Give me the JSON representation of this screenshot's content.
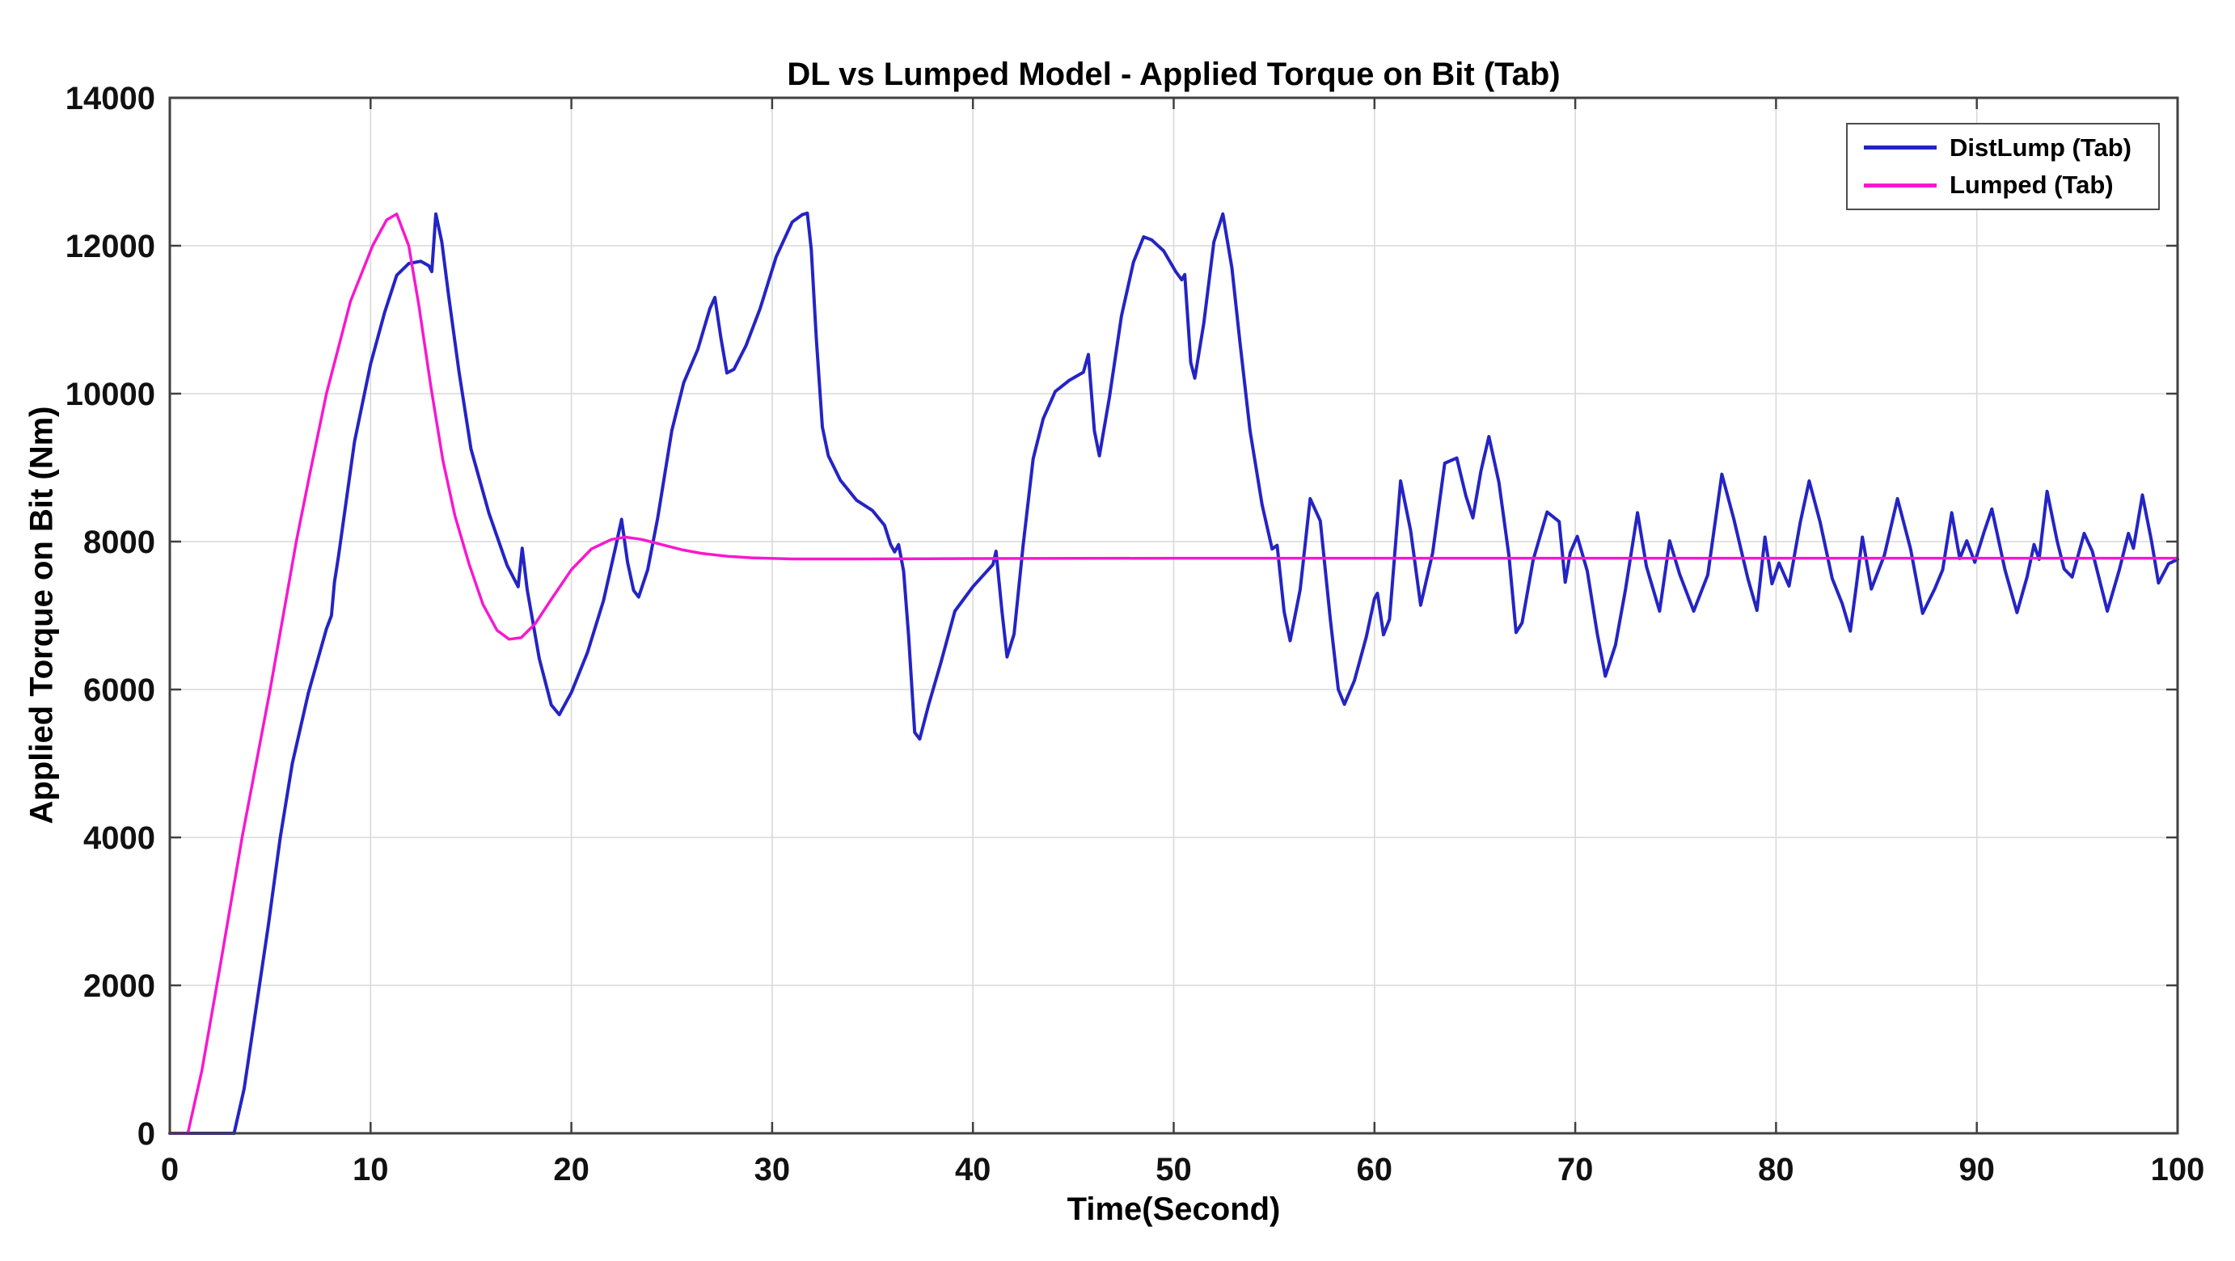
{
  "chart_data": {
    "type": "line",
    "title": "DL vs Lumped Model - Applied Torque on Bit (Tab)",
    "xlabel": "Time(Second)",
    "ylabel": "Applied Torque on Bit (Nm)",
    "xlim": [
      0,
      100
    ],
    "ylim": [
      0,
      14000
    ],
    "x_ticks": [
      0,
      10,
      20,
      30,
      40,
      50,
      60,
      70,
      80,
      90,
      100
    ],
    "y_ticks": [
      0,
      2000,
      4000,
      6000,
      8000,
      10000,
      12000,
      14000
    ],
    "grid": true,
    "legend_position": "top-right",
    "style": {
      "grid_color": "#d9d9d9",
      "axis_color": "#404040",
      "tick_label_color": "#111111",
      "background": "#ffffff"
    },
    "series": [
      {
        "name": "DistLump (Tab)",
        "color": "#2424c4",
        "line_width": 4,
        "points": [
          [
            0,
            0
          ],
          [
            1,
            0
          ],
          [
            2,
            0
          ],
          [
            3.2,
            0
          ],
          [
            3.7,
            600
          ],
          [
            4.3,
            1700
          ],
          [
            4.9,
            2800
          ],
          [
            5.5,
            4000
          ],
          [
            6.1,
            5000
          ],
          [
            6.9,
            5950
          ],
          [
            7.8,
            6820
          ],
          [
            8.05,
            7000
          ],
          [
            8.2,
            7450
          ],
          [
            8.4,
            7800
          ],
          [
            9.2,
            9350
          ],
          [
            10,
            10400
          ],
          [
            10.7,
            11100
          ],
          [
            11.3,
            11600
          ],
          [
            11.9,
            11760
          ],
          [
            12.5,
            11790
          ],
          [
            12.9,
            11730
          ],
          [
            13.05,
            11650
          ],
          [
            13.25,
            12430
          ],
          [
            13.55,
            12050
          ],
          [
            13.9,
            11300
          ],
          [
            14.4,
            10300
          ],
          [
            15,
            9250
          ],
          [
            15.9,
            8380
          ],
          [
            16.8,
            7680
          ],
          [
            17.35,
            7390
          ],
          [
            17.55,
            7910
          ],
          [
            17.8,
            7350
          ],
          [
            18.4,
            6420
          ],
          [
            19,
            5790
          ],
          [
            19.4,
            5660
          ],
          [
            20,
            5960
          ],
          [
            20.8,
            6500
          ],
          [
            21.6,
            7200
          ],
          [
            22.2,
            7920
          ],
          [
            22.5,
            8300
          ],
          [
            22.8,
            7720
          ],
          [
            23.1,
            7340
          ],
          [
            23.35,
            7250
          ],
          [
            23.8,
            7620
          ],
          [
            24.3,
            8320
          ],
          [
            25,
            9500
          ],
          [
            25.6,
            10150
          ],
          [
            26.3,
            10600
          ],
          [
            26.9,
            11150
          ],
          [
            27.15,
            11300
          ],
          [
            27.45,
            10750
          ],
          [
            27.75,
            10280
          ],
          [
            28.1,
            10330
          ],
          [
            28.7,
            10650
          ],
          [
            29.4,
            11150
          ],
          [
            30.2,
            11850
          ],
          [
            31,
            12320
          ],
          [
            31.5,
            12420
          ],
          [
            31.75,
            12440
          ],
          [
            31.95,
            11950
          ],
          [
            32.2,
            10750
          ],
          [
            32.5,
            9550
          ],
          [
            32.8,
            9160
          ],
          [
            33.4,
            8830
          ],
          [
            34.2,
            8560
          ],
          [
            35,
            8420
          ],
          [
            35.6,
            8220
          ],
          [
            35.9,
            7960
          ],
          [
            36.1,
            7860
          ],
          [
            36.3,
            7960
          ],
          [
            36.55,
            7600
          ],
          [
            36.8,
            6720
          ],
          [
            37.1,
            5420
          ],
          [
            37.35,
            5330
          ],
          [
            37.8,
            5800
          ],
          [
            38.4,
            6360
          ],
          [
            39.1,
            7060
          ],
          [
            40,
            7390
          ],
          [
            40.6,
            7570
          ],
          [
            41,
            7690
          ],
          [
            41.15,
            7870
          ],
          [
            41.45,
            7050
          ],
          [
            41.7,
            6440
          ],
          [
            42.05,
            6750
          ],
          [
            42.5,
            7950
          ],
          [
            43,
            9120
          ],
          [
            43.5,
            9660
          ],
          [
            44.1,
            10030
          ],
          [
            44.8,
            10180
          ],
          [
            45.5,
            10290
          ],
          [
            45.75,
            10530
          ],
          [
            46.05,
            9500
          ],
          [
            46.3,
            9160
          ],
          [
            46.8,
            9950
          ],
          [
            47.4,
            11050
          ],
          [
            48,
            11780
          ],
          [
            48.5,
            12120
          ],
          [
            48.9,
            12080
          ],
          [
            49.5,
            11930
          ],
          [
            50.1,
            11650
          ],
          [
            50.4,
            11540
          ],
          [
            50.55,
            11610
          ],
          [
            50.85,
            10420
          ],
          [
            51.05,
            10210
          ],
          [
            51.5,
            10950
          ],
          [
            52,
            12050
          ],
          [
            52.45,
            12430
          ],
          [
            52.9,
            11700
          ],
          [
            53.3,
            10700
          ],
          [
            53.8,
            9500
          ],
          [
            54.4,
            8500
          ],
          [
            54.9,
            7900
          ],
          [
            55.15,
            7950
          ],
          [
            55.5,
            7050
          ],
          [
            55.8,
            6660
          ],
          [
            56.3,
            7350
          ],
          [
            56.8,
            8580
          ],
          [
            57.3,
            8280
          ],
          [
            57.8,
            6950
          ],
          [
            58.2,
            6000
          ],
          [
            58.5,
            5800
          ],
          [
            59,
            6120
          ],
          [
            59.6,
            6720
          ],
          [
            60,
            7230
          ],
          [
            60.15,
            7300
          ],
          [
            60.45,
            6740
          ],
          [
            60.75,
            6950
          ],
          [
            61.3,
            8820
          ],
          [
            61.8,
            8150
          ],
          [
            62.3,
            7140
          ],
          [
            62.9,
            7850
          ],
          [
            63.5,
            9060
          ],
          [
            64.1,
            9130
          ],
          [
            64.55,
            8620
          ],
          [
            64.9,
            8320
          ],
          [
            65.3,
            8950
          ],
          [
            65.7,
            9420
          ],
          [
            66.2,
            8800
          ],
          [
            66.7,
            7800
          ],
          [
            67.05,
            6770
          ],
          [
            67.35,
            6900
          ],
          [
            67.9,
            7750
          ],
          [
            68.6,
            8400
          ],
          [
            69.2,
            8270
          ],
          [
            69.5,
            7450
          ],
          [
            69.75,
            7850
          ],
          [
            70.1,
            8070
          ],
          [
            70.6,
            7600
          ],
          [
            71.1,
            6750
          ],
          [
            71.5,
            6180
          ],
          [
            72,
            6600
          ],
          [
            72.5,
            7350
          ],
          [
            73.1,
            8390
          ],
          [
            73.55,
            7660
          ],
          [
            74.2,
            7060
          ],
          [
            74.7,
            8010
          ],
          [
            75.2,
            7560
          ],
          [
            75.9,
            7060
          ],
          [
            76.6,
            7550
          ],
          [
            77.3,
            8910
          ],
          [
            77.9,
            8300
          ],
          [
            78.6,
            7500
          ],
          [
            79.05,
            7070
          ],
          [
            79.45,
            8060
          ],
          [
            79.8,
            7430
          ],
          [
            80.15,
            7710
          ],
          [
            80.65,
            7400
          ],
          [
            81.2,
            8250
          ],
          [
            81.65,
            8820
          ],
          [
            82.2,
            8260
          ],
          [
            82.8,
            7500
          ],
          [
            83.3,
            7160
          ],
          [
            83.7,
            6790
          ],
          [
            84,
            7400
          ],
          [
            84.3,
            8060
          ],
          [
            84.75,
            7360
          ],
          [
            85.4,
            7820
          ],
          [
            86.05,
            8580
          ],
          [
            86.7,
            7900
          ],
          [
            87.3,
            7030
          ],
          [
            87.9,
            7360
          ],
          [
            88.3,
            7620
          ],
          [
            88.75,
            8390
          ],
          [
            89.15,
            7770
          ],
          [
            89.5,
            8010
          ],
          [
            89.9,
            7720
          ],
          [
            90.35,
            8120
          ],
          [
            90.75,
            8440
          ],
          [
            91.4,
            7620
          ],
          [
            92,
            7040
          ],
          [
            92.5,
            7520
          ],
          [
            92.85,
            7960
          ],
          [
            93.1,
            7760
          ],
          [
            93.5,
            8680
          ],
          [
            94,
            8010
          ],
          [
            94.35,
            7630
          ],
          [
            94.75,
            7520
          ],
          [
            95.35,
            8110
          ],
          [
            95.75,
            7870
          ],
          [
            96.5,
            7060
          ],
          [
            97.1,
            7620
          ],
          [
            97.55,
            8110
          ],
          [
            97.8,
            7910
          ],
          [
            98.25,
            8630
          ],
          [
            98.7,
            8010
          ],
          [
            99.05,
            7440
          ],
          [
            99.55,
            7700
          ],
          [
            100,
            7760
          ]
        ]
      },
      {
        "name": "Lumped (Tab)",
        "color": "#f718ce",
        "line_width": 3.5,
        "points": [
          [
            0,
            0
          ],
          [
            0.9,
            0
          ],
          [
            1.6,
            850
          ],
          [
            2.5,
            2250
          ],
          [
            3.6,
            4000
          ],
          [
            4.3,
            5000
          ],
          [
            5,
            6000
          ],
          [
            6.3,
            8000
          ],
          [
            7,
            8950
          ],
          [
            7.8,
            10000
          ],
          [
            9,
            11250
          ],
          [
            10.1,
            12000
          ],
          [
            10.8,
            12350
          ],
          [
            11.3,
            12430
          ],
          [
            11.9,
            12000
          ],
          [
            12.4,
            11200
          ],
          [
            13,
            10100
          ],
          [
            13.6,
            9100
          ],
          [
            14.2,
            8350
          ],
          [
            14.9,
            7700
          ],
          [
            15.6,
            7150
          ],
          [
            16.3,
            6800
          ],
          [
            16.9,
            6680
          ],
          [
            17.5,
            6700
          ],
          [
            18.2,
            6890
          ],
          [
            19,
            7220
          ],
          [
            20,
            7620
          ],
          [
            21,
            7900
          ],
          [
            22,
            8030
          ],
          [
            22.7,
            8060
          ],
          [
            23.5,
            8030
          ],
          [
            24.5,
            7960
          ],
          [
            25.5,
            7890
          ],
          [
            26.5,
            7840
          ],
          [
            27.8,
            7800
          ],
          [
            29,
            7780
          ],
          [
            31,
            7765
          ],
          [
            34,
            7765
          ],
          [
            40,
            7770
          ],
          [
            50,
            7775
          ],
          [
            60,
            7775
          ],
          [
            70,
            7775
          ],
          [
            80,
            7775
          ],
          [
            90,
            7775
          ],
          [
            100,
            7775
          ]
        ]
      }
    ]
  }
}
